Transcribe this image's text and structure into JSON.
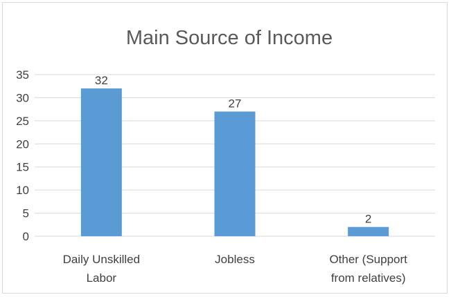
{
  "chart_data": {
    "type": "bar",
    "title": "Main Source of Income",
    "categories": [
      [
        "Daily Unskilled",
        "Labor"
      ],
      [
        "Jobless"
      ],
      [
        "Other (Support",
        "from relatives)"
      ]
    ],
    "values": [
      32,
      27,
      2
    ],
    "data_labels": [
      "32",
      "27",
      "2"
    ],
    "ylim": [
      0,
      35
    ],
    "yticks": [
      0,
      5,
      10,
      15,
      20,
      25,
      30,
      35
    ],
    "grid": true,
    "legend": "none",
    "bar_color": "#5b9bd5"
  }
}
